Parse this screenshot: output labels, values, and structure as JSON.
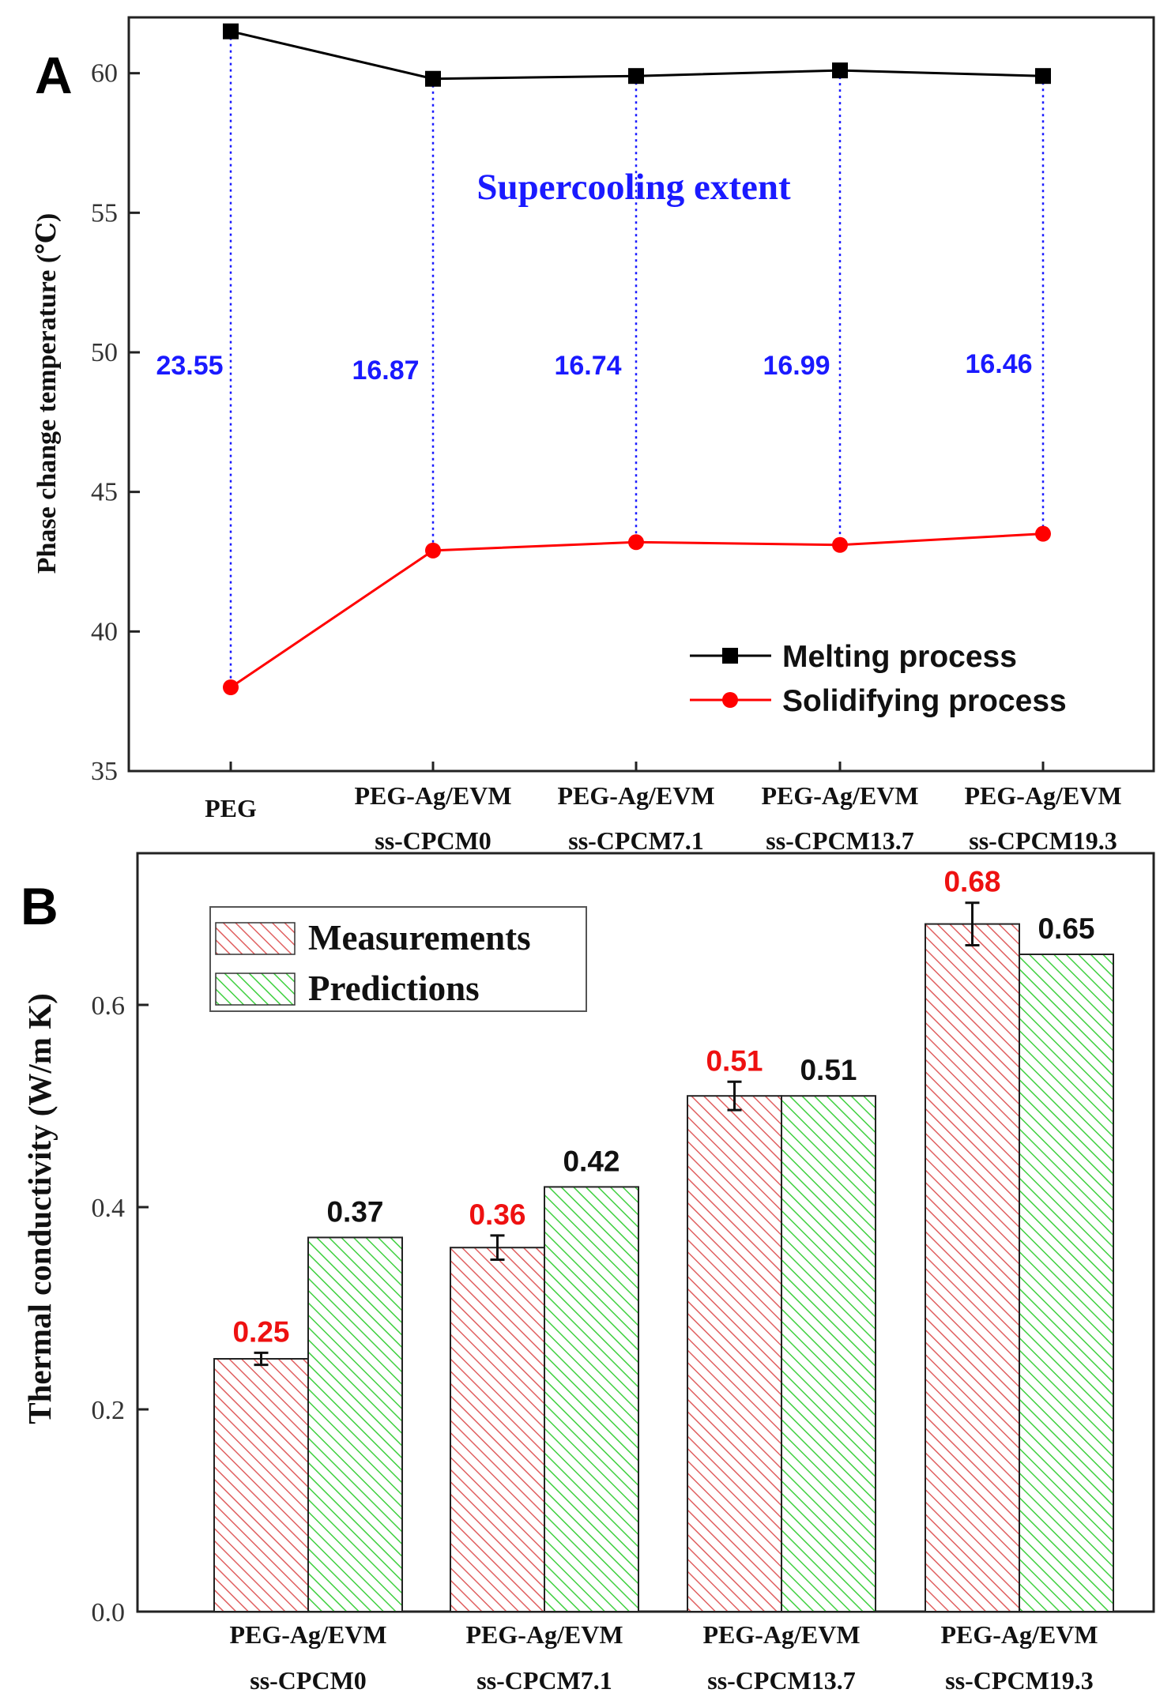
{
  "panel_a": {
    "letter": "A",
    "annotation_title": "Supercooling extent"
  },
  "panel_b": {
    "letter": "B"
  },
  "colors": {
    "melting": "#000000",
    "solidifying": "#ff0000",
    "annotation": "#1a1aff",
    "measurements_hatch": "#e06060",
    "predictions_hatch": "#40d040",
    "measurement_label": "#ee1111",
    "prediction_label": "#111111"
  },
  "chart_data": [
    {
      "type": "line",
      "ylabel": "Phase change temperature (℃)",
      "xlabel": "",
      "ylim": [
        35,
        62
      ],
      "yticks": [
        35,
        40,
        45,
        50,
        55,
        60
      ],
      "categories": [
        [
          "PEG",
          ""
        ],
        [
          "PEG-Ag/EVM",
          "ss-CPCM0"
        ],
        [
          "PEG-Ag/EVM",
          "ss-CPCM7.1"
        ],
        [
          "PEG-Ag/EVM",
          "ss-CPCM13.7"
        ],
        [
          "PEG-Ag/EVM",
          "ss-CPCM19.3"
        ]
      ],
      "series": [
        {
          "name": "Melting process",
          "marker": "square",
          "values": [
            61.5,
            59.8,
            59.9,
            60.1,
            59.9
          ]
        },
        {
          "name": "Solidifying process",
          "marker": "circle",
          "values": [
            38.0,
            42.9,
            43.2,
            43.1,
            43.5
          ]
        }
      ],
      "annotations": [
        "23.55",
        "16.87",
        "16.74",
        "16.99",
        "16.46"
      ],
      "legend_position": "bottom-right",
      "grid": false
    },
    {
      "type": "bar",
      "ylabel": "Thermal conductivity   (W/m K)",
      "xlabel": "",
      "ylim": [
        0,
        0.75
      ],
      "yticks": [
        "0.0",
        "0.2",
        "0.4",
        "0.6"
      ],
      "categories": [
        [
          "PEG-Ag/EVM",
          "ss-CPCM0"
        ],
        [
          "PEG-Ag/EVM",
          "ss-CPCM7.1"
        ],
        [
          "PEG-Ag/EVM",
          "ss-CPCM13.7"
        ],
        [
          "PEG-Ag/EVM",
          "ss-CPCM19.3"
        ]
      ],
      "series": [
        {
          "name": "Measurements",
          "values": [
            0.25,
            0.36,
            0.51,
            0.68
          ],
          "errors": [
            0.006,
            0.012,
            0.014,
            0.021
          ],
          "labels": [
            "0.25",
            "0.36",
            "0.51",
            "0.68"
          ]
        },
        {
          "name": "Predictions",
          "values": [
            0.37,
            0.42,
            0.51,
            0.65
          ],
          "labels": [
            "0.37",
            "0.42",
            "0.51",
            "0.65"
          ]
        }
      ],
      "legend_position": "top-left",
      "grid": false
    }
  ]
}
